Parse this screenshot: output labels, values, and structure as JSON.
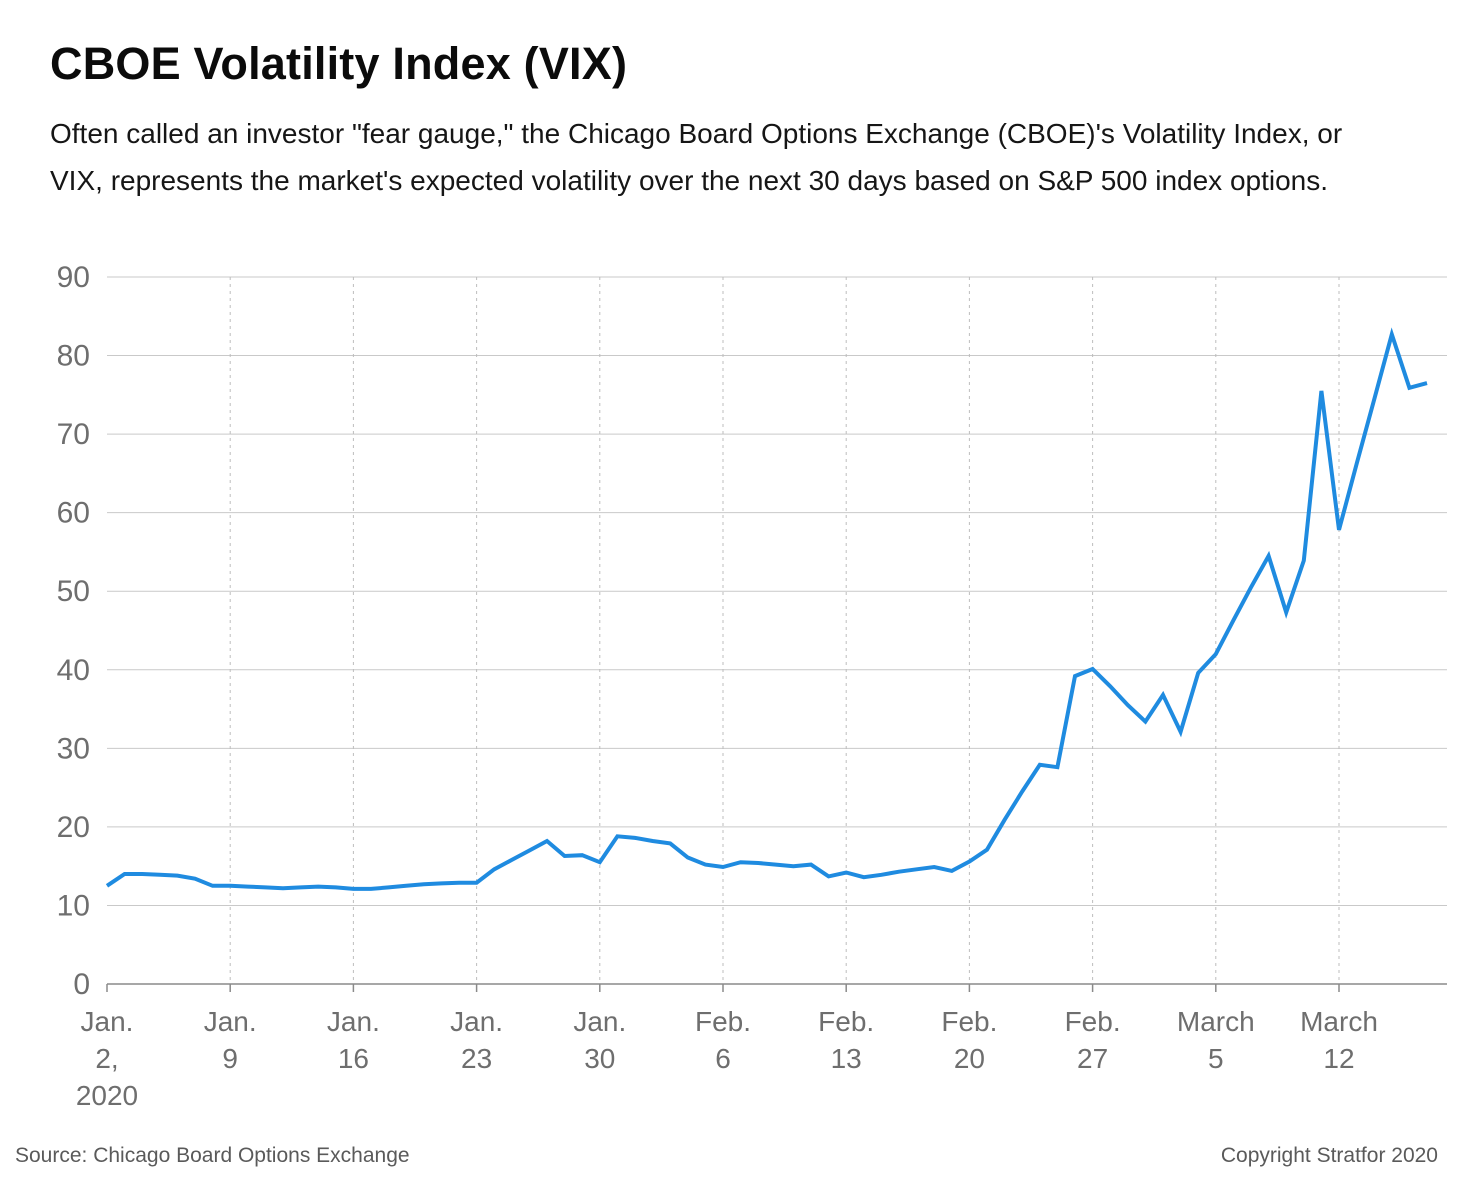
{
  "header": {
    "title": "CBOE Volatility Index (VIX)",
    "subtitle": "Often called an investor \"fear gauge,\" the Chicago Board Options Exchange (CBOE)'s Volatility Index, or VIX, represents the market's expected volatility over the next 30 days based on S&P 500 index options."
  },
  "footer": {
    "source": "Source: Chicago Board Options Exchange",
    "copyright": "Copyright Stratfor 2020"
  },
  "chart_data": {
    "type": "line",
    "title": "CBOE Volatility Index (VIX)",
    "xlabel": "",
    "ylabel": "",
    "ylim": [
      0,
      90
    ],
    "yticks": [
      0,
      10,
      20,
      30,
      40,
      50,
      60,
      70,
      80,
      90
    ],
    "grid": {
      "y": "solid",
      "x": "dotted"
    },
    "line_color": "#1f8be0",
    "x_tick_labels": [
      {
        "x": "2020-01-02",
        "lines": [
          "Jan.",
          "2,",
          "2020"
        ]
      },
      {
        "x": "2020-01-09",
        "lines": [
          "Jan.",
          "9"
        ]
      },
      {
        "x": "2020-01-16",
        "lines": [
          "Jan.",
          "16"
        ]
      },
      {
        "x": "2020-01-23",
        "lines": [
          "Jan.",
          "23"
        ]
      },
      {
        "x": "2020-01-30",
        "lines": [
          "Jan.",
          "30"
        ]
      },
      {
        "x": "2020-02-06",
        "lines": [
          "Feb.",
          "6"
        ]
      },
      {
        "x": "2020-02-13",
        "lines": [
          "Feb.",
          "13"
        ]
      },
      {
        "x": "2020-02-20",
        "lines": [
          "Feb.",
          "20"
        ]
      },
      {
        "x": "2020-02-27",
        "lines": [
          "Feb.",
          "27"
        ]
      },
      {
        "x": "2020-03-05",
        "lines": [
          "March",
          "5"
        ]
      },
      {
        "x": "2020-03-12",
        "lines": [
          "March",
          "12"
        ]
      }
    ],
    "xlim": [
      "2020-01-02",
      "2020-03-21"
    ],
    "series": [
      {
        "points": [
          [
            "2020-01-02",
            12.5
          ],
          [
            "2020-01-03",
            14.0
          ],
          [
            "2020-01-04",
            14.0
          ],
          [
            "2020-01-05",
            13.9
          ],
          [
            "2020-01-06",
            13.8
          ],
          [
            "2020-01-07",
            13.4
          ],
          [
            "2020-01-08",
            12.5
          ],
          [
            "2020-01-09",
            12.5
          ],
          [
            "2020-01-10",
            12.4
          ],
          [
            "2020-01-11",
            12.3
          ],
          [
            "2020-01-12",
            12.2
          ],
          [
            "2020-01-13",
            12.3
          ],
          [
            "2020-01-14",
            12.4
          ],
          [
            "2020-01-15",
            12.3
          ],
          [
            "2020-01-16",
            12.1
          ],
          [
            "2020-01-17",
            12.1
          ],
          [
            "2020-01-18",
            12.3
          ],
          [
            "2020-01-19",
            12.5
          ],
          [
            "2020-01-20",
            12.7
          ],
          [
            "2020-01-21",
            12.8
          ],
          [
            "2020-01-22",
            12.9
          ],
          [
            "2020-01-23",
            12.9
          ],
          [
            "2020-01-24",
            14.6
          ],
          [
            "2020-01-25",
            15.8
          ],
          [
            "2020-01-26",
            17.0
          ],
          [
            "2020-01-27",
            18.2
          ],
          [
            "2020-01-28",
            16.3
          ],
          [
            "2020-01-29",
            16.4
          ],
          [
            "2020-01-30",
            15.5
          ],
          [
            "2020-01-31",
            18.8
          ],
          [
            "2020-02-01",
            18.6
          ],
          [
            "2020-02-02",
            18.2
          ],
          [
            "2020-02-03",
            17.9
          ],
          [
            "2020-02-04",
            16.1
          ],
          [
            "2020-02-05",
            15.2
          ],
          [
            "2020-02-06",
            14.9
          ],
          [
            "2020-02-07",
            15.5
          ],
          [
            "2020-02-08",
            15.4
          ],
          [
            "2020-02-09",
            15.2
          ],
          [
            "2020-02-10",
            15.0
          ],
          [
            "2020-02-11",
            15.2
          ],
          [
            "2020-02-12",
            13.7
          ],
          [
            "2020-02-13",
            14.2
          ],
          [
            "2020-02-14",
            13.6
          ],
          [
            "2020-02-15",
            13.9
          ],
          [
            "2020-02-16",
            14.3
          ],
          [
            "2020-02-17",
            14.6
          ],
          [
            "2020-02-18",
            14.9
          ],
          [
            "2020-02-19",
            14.4
          ],
          [
            "2020-02-20",
            15.6
          ],
          [
            "2020-02-21",
            17.1
          ],
          [
            "2020-02-22",
            20.9
          ],
          [
            "2020-02-23",
            24.5
          ],
          [
            "2020-02-24",
            27.9
          ],
          [
            "2020-02-25",
            27.6
          ],
          [
            "2020-02-26",
            39.2
          ],
          [
            "2020-02-27",
            40.1
          ],
          [
            "2020-02-28",
            37.9
          ],
          [
            "2020-02-29",
            35.5
          ],
          [
            "2020-03-01",
            33.4
          ],
          [
            "2020-03-02",
            36.8
          ],
          [
            "2020-03-03",
            32.1
          ],
          [
            "2020-03-04",
            39.6
          ],
          [
            "2020-03-05",
            42.0
          ],
          [
            "2020-03-06",
            46.3
          ],
          [
            "2020-03-07",
            50.5
          ],
          [
            "2020-03-08",
            54.5
          ],
          [
            "2020-03-09",
            47.3
          ],
          [
            "2020-03-10",
            53.9
          ],
          [
            "2020-03-11",
            75.5
          ],
          [
            "2020-03-12",
            57.8
          ],
          [
            "2020-03-13",
            66.2
          ],
          [
            "2020-03-14",
            74.4
          ],
          [
            "2020-03-15",
            82.7
          ],
          [
            "2020-03-16",
            75.9
          ],
          [
            "2020-03-17",
            76.5
          ]
        ]
      }
    ]
  }
}
